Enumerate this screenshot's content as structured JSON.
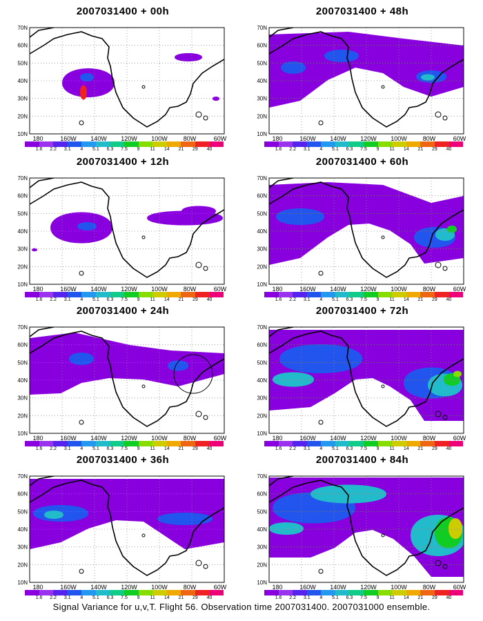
{
  "caption": "Signal Variance for u,v,T. Flight 56. Observation time 2007031400. 2007031000 ensemble.",
  "map": {
    "lat_labels": [
      "70N",
      "60N",
      "50N",
      "40N",
      "30N",
      "20N",
      "10N"
    ],
    "lon_labels": [
      "180",
      "160W",
      "140W",
      "120W",
      "100W",
      "80W",
      "60W"
    ]
  },
  "colorbar": {
    "labels": [
      "1.6",
      "2.2",
      "3.1",
      "4",
      "5.1",
      "6.3",
      "7.5",
      "9",
      "11",
      "14",
      "21",
      "29",
      "40"
    ],
    "colors": [
      "#8800dd",
      "#9933ee",
      "#5522ee",
      "#2255ee",
      "#2299ee",
      "#22bbcc",
      "#11cc88",
      "#11cc22",
      "#88dd00",
      "#cccc00",
      "#eeaa00",
      "#ee6611",
      "#ee2222",
      "#ee0077"
    ]
  },
  "panels": [
    {
      "title": "2007031400 + 00h"
    },
    {
      "title": "2007031400 + 48h"
    },
    {
      "title": "2007031400 + 12h"
    },
    {
      "title": "2007031400 + 60h"
    },
    {
      "title": "2007031400 + 24h"
    },
    {
      "title": "2007031400 + 72h"
    },
    {
      "title": "2007031400 + 36h"
    },
    {
      "title": "2007031400 + 84h"
    }
  ]
}
